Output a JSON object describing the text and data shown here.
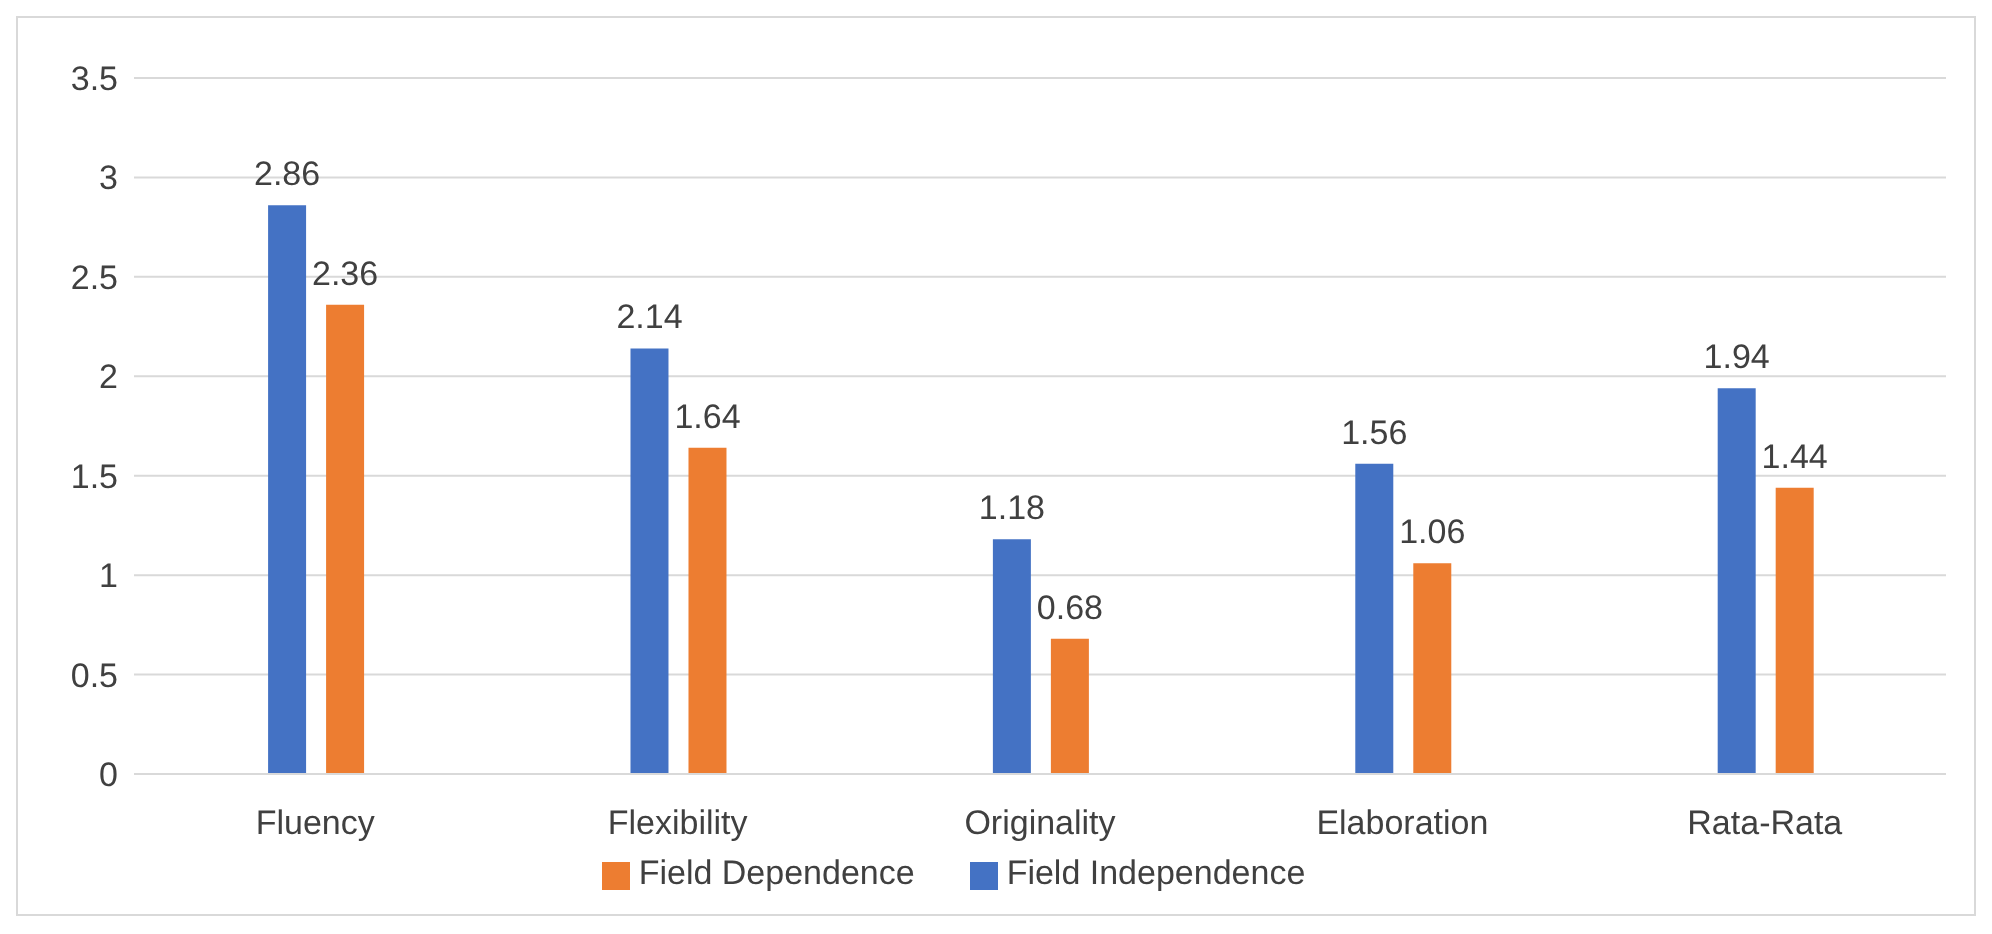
{
  "chart_data": {
    "type": "bar",
    "categories": [
      "Fluency",
      "Flexibility",
      "Originality",
      "Elaboration",
      "Rata-Rata"
    ],
    "series": [
      {
        "name": "Field Independence",
        "color": "#4472c4",
        "values": [
          2.86,
          2.14,
          1.18,
          1.56,
          1.94
        ]
      },
      {
        "name": "Field Dependence",
        "color": "#ed7d31",
        "values": [
          2.36,
          1.64,
          0.68,
          1.06,
          1.44
        ]
      }
    ],
    "ylim": [
      0,
      3.5
    ],
    "yticks": [
      0,
      0.5,
      1,
      1.5,
      2,
      2.5,
      3,
      3.5
    ],
    "grid": "y",
    "legend": "bottom",
    "data_labels": true
  }
}
